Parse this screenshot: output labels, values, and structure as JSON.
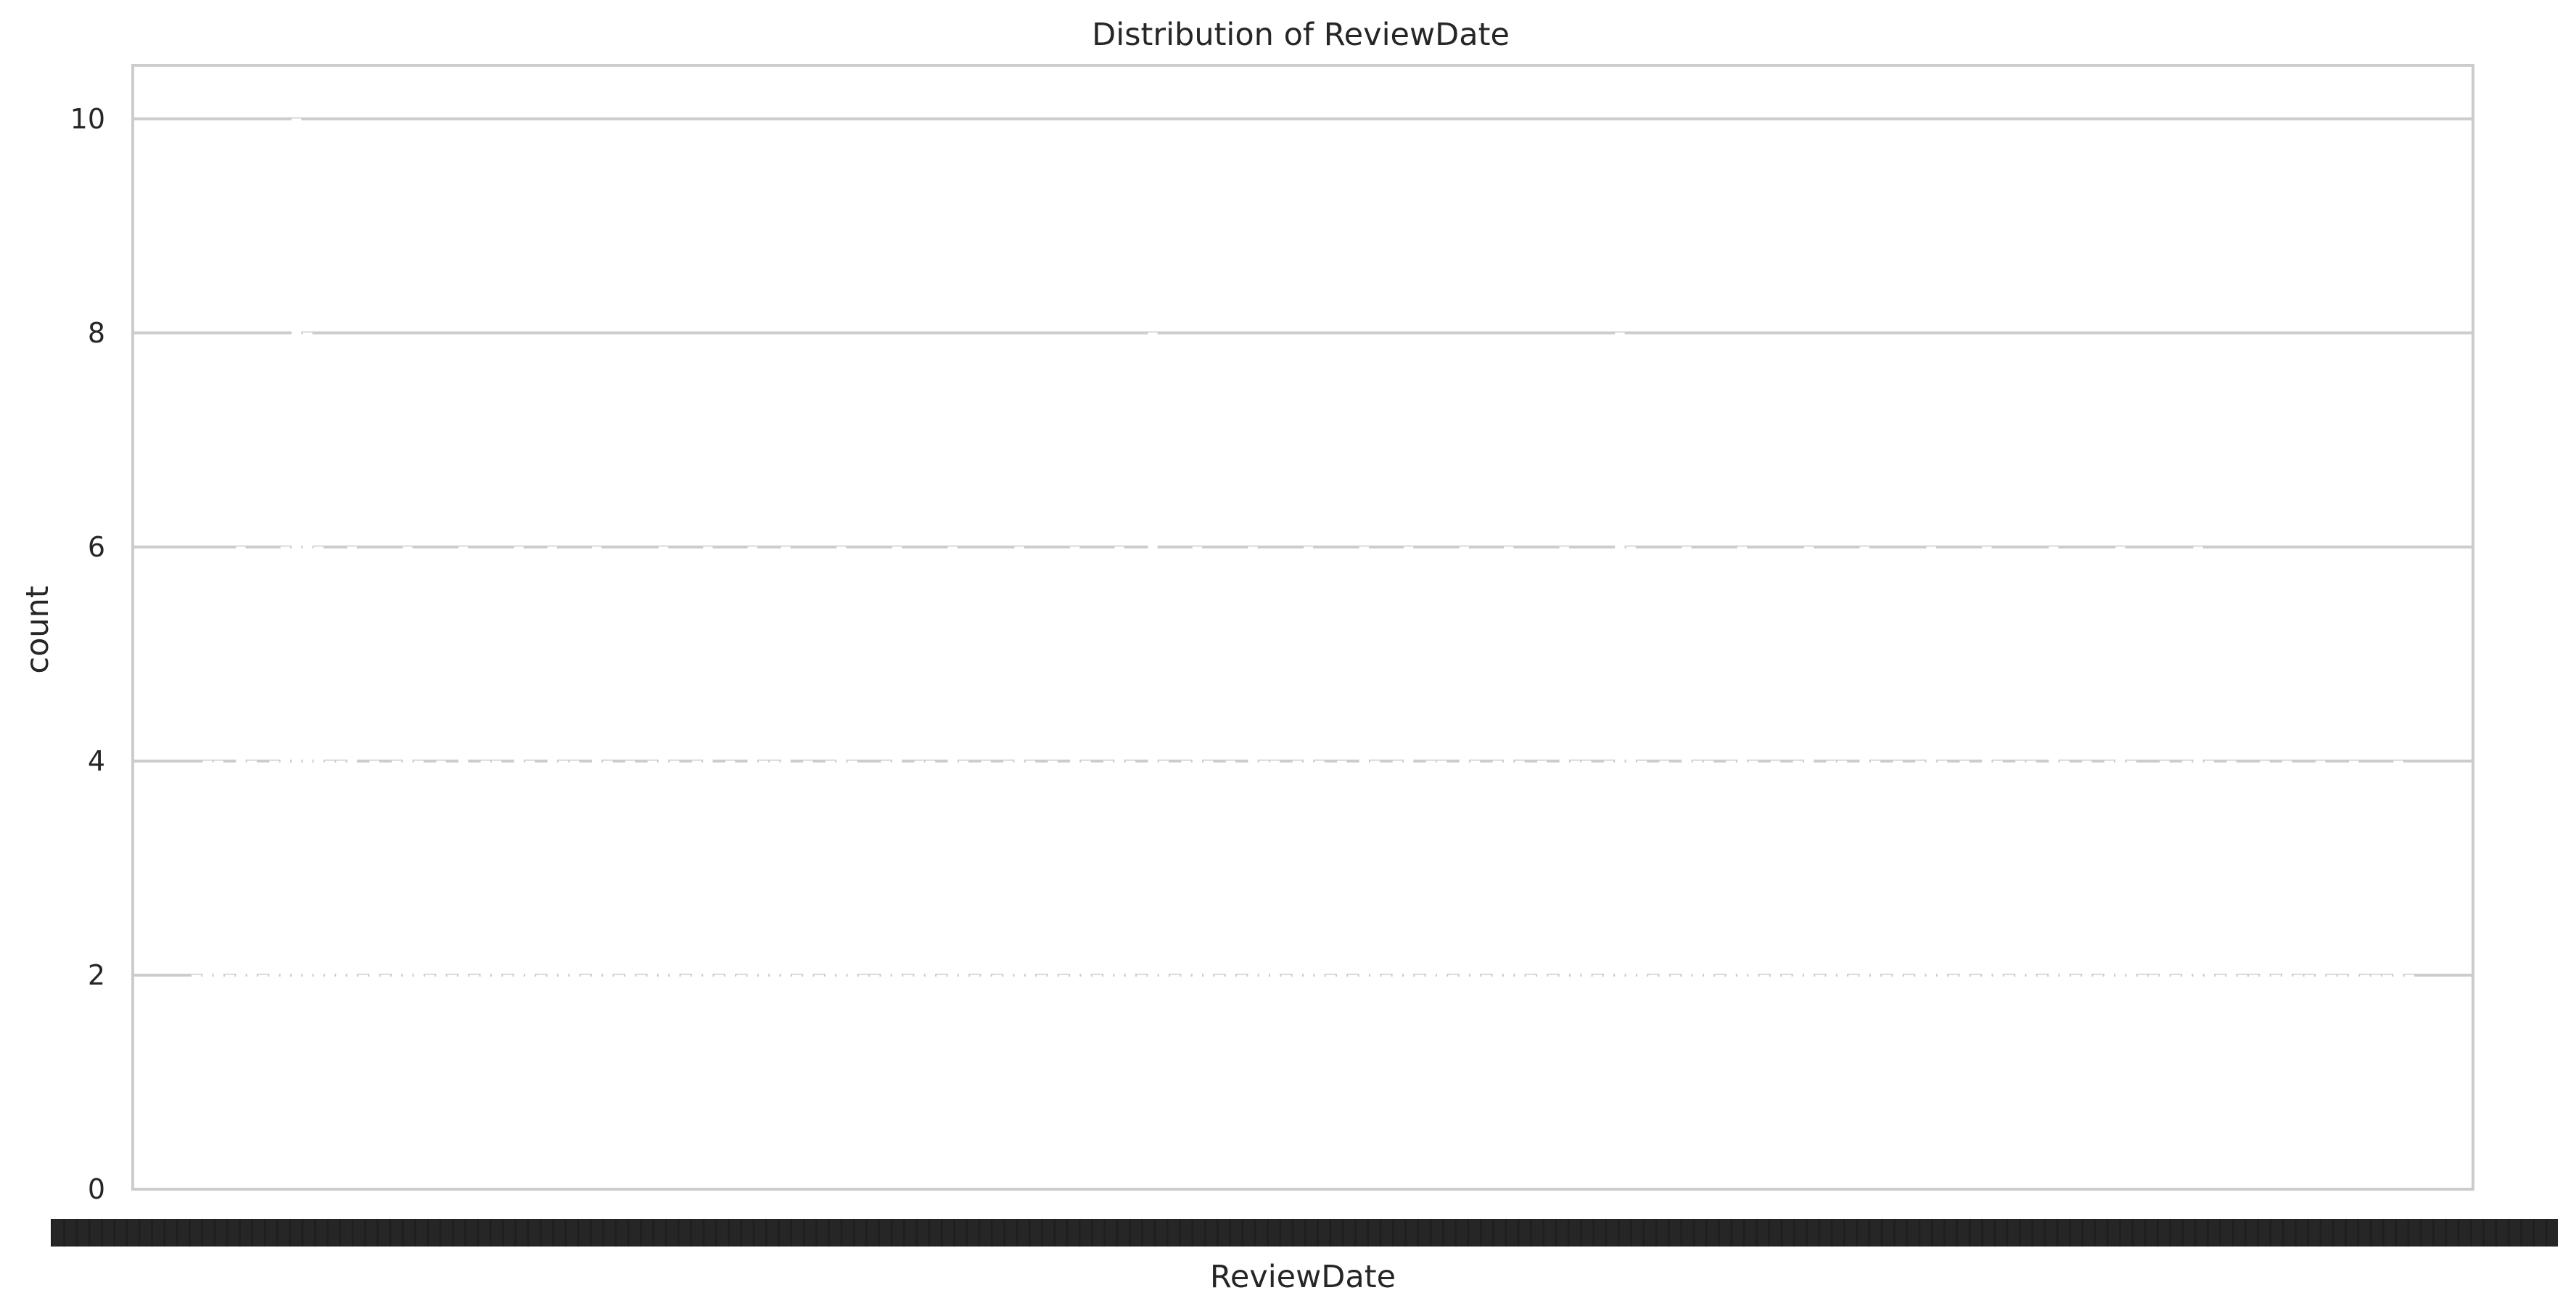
{
  "chart_data": {
    "type": "bar",
    "title": "Distribution of ReviewDate",
    "xlabel": "ReviewDate",
    "ylabel": "count",
    "ylim": [
      0,
      10.5
    ],
    "yticks": [
      0,
      2,
      4,
      6,
      8,
      10
    ],
    "grid": true,
    "legend": "none",
    "colors": {
      "background": "#ffffff",
      "grid": "#cccccc",
      "spine": "#cccccc",
      "text": "#262626",
      "bar_edge": "#ffffff"
    },
    "categories_note_visible": false,
    "values": [
      2,
      4,
      4,
      2,
      6,
      4,
      2,
      4,
      6,
      10,
      8,
      6,
      4,
      4,
      6,
      2,
      4,
      2,
      4,
      6,
      4,
      2,
      4,
      2,
      6,
      2,
      4,
      4,
      2,
      6,
      4,
      2,
      6,
      4,
      4,
      2,
      6,
      4,
      2,
      4,
      2,
      4,
      6,
      4,
      2,
      4,
      6,
      2,
      4,
      2,
      6,
      4,
      4,
      6,
      2,
      4,
      2,
      4,
      6,
      4,
      2,
      2,
      4,
      6,
      2,
      4,
      4,
      2,
      6,
      4,
      2,
      4,
      2,
      4,
      6,
      4,
      2,
      4,
      2,
      6,
      4,
      2,
      4,
      6,
      4,
      2,
      8,
      4,
      2,
      4,
      6,
      4,
      2,
      4,
      2,
      6,
      4,
      4,
      2,
      4,
      6,
      4,
      2,
      4,
      2,
      6,
      4,
      2,
      4,
      6,
      2,
      4,
      4,
      2,
      6,
      4,
      2,
      4,
      6,
      4,
      2,
      4,
      2,
      6,
      4,
      4,
      2,
      4,
      8,
      6,
      4,
      2,
      4,
      2,
      6,
      4,
      4,
      2,
      4,
      6,
      4,
      2,
      4,
      2,
      4,
      6,
      2,
      4,
      4,
      2,
      6,
      4,
      2,
      4,
      2,
      4,
      6,
      4,
      2,
      4,
      2,
      6,
      4,
      2,
      4,
      4,
      2,
      6,
      4,
      2,
      4,
      2,
      4,
      6,
      4,
      2,
      2,
      4,
      2,
      4,
      6,
      4,
      2,
      4,
      2,
      2,
      4,
      2,
      4,
      2,
      2,
      4,
      2,
      2,
      4,
      2,
      2,
      2,
      4,
      2
    ],
    "x_tick_labels_count": 200
  }
}
